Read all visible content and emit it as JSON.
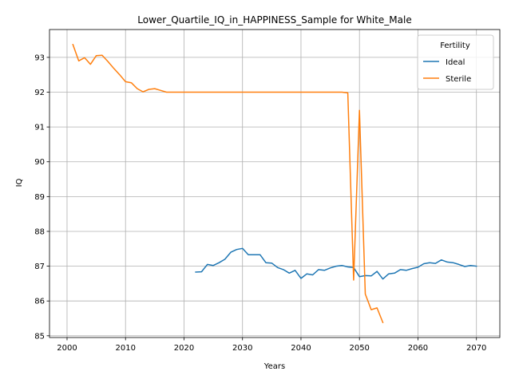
{
  "chart_data": {
    "type": "line",
    "title": "Lower_Quartile_IQ_in_HAPPINESS_Sample for White_Male",
    "xlabel": "Years",
    "ylabel": "IQ",
    "xlim": [
      1997,
      2074
    ],
    "ylim": [
      84.95,
      93.8
    ],
    "xticks": [
      2000,
      2010,
      2020,
      2030,
      2040,
      2050,
      2060,
      2070
    ],
    "yticks": [
      85,
      86,
      87,
      88,
      89,
      90,
      91,
      92,
      93
    ],
    "grid": true,
    "legend": {
      "title": "Fertility",
      "placement": "top-right"
    },
    "series": [
      {
        "name": "Ideal",
        "color": "#1f77b4",
        "x": [
          2022,
          2023,
          2024,
          2025,
          2026,
          2027,
          2028,
          2029,
          2030,
          2031,
          2032,
          2033,
          2034,
          2035,
          2036,
          2037,
          2038,
          2039,
          2040,
          2041,
          2042,
          2043,
          2044,
          2045,
          2046,
          2047,
          2048,
          2049,
          2050,
          2051,
          2052,
          2053,
          2054,
          2055,
          2056,
          2057,
          2058,
          2059,
          2060,
          2061,
          2062,
          2063,
          2064,
          2065,
          2066,
          2067,
          2068,
          2069,
          2070
        ],
        "values": [
          86.83,
          86.84,
          87.05,
          87.02,
          87.1,
          87.2,
          87.4,
          87.48,
          87.51,
          87.33,
          87.33,
          87.33,
          87.1,
          87.09,
          86.96,
          86.9,
          86.8,
          86.88,
          86.65,
          86.78,
          86.75,
          86.9,
          86.88,
          86.95,
          87.0,
          87.02,
          86.98,
          86.96,
          86.7,
          86.73,
          86.72,
          86.85,
          86.63,
          86.78,
          86.8,
          86.9,
          86.88,
          86.93,
          86.97,
          87.07,
          87.1,
          87.08,
          87.18,
          87.12,
          87.1,
          87.05,
          86.99,
          87.02,
          87.0
        ]
      },
      {
        "name": "Sterile",
        "color": "#ff7f0e",
        "x": [
          2001,
          2002,
          2003,
          2004,
          2005,
          2006,
          2007,
          2008,
          2009,
          2010,
          2011,
          2012,
          2013,
          2014,
          2015,
          2016,
          2017,
          2018,
          2019,
          2020,
          2025,
          2030,
          2035,
          2040,
          2045,
          2047,
          2048,
          2049,
          2050,
          2051,
          2052,
          2053,
          2054
        ],
        "values": [
          93.37,
          92.9,
          92.99,
          92.8,
          93.05,
          93.06,
          92.88,
          92.68,
          92.5,
          92.3,
          92.27,
          92.1,
          92.01,
          92.08,
          92.1,
          92.05,
          92.0,
          92.0,
          92.0,
          92.0,
          92.0,
          92.0,
          92.0,
          92.0,
          92.0,
          92.0,
          91.98,
          86.6,
          91.48,
          86.2,
          85.75,
          85.8,
          85.38
        ]
      }
    ]
  }
}
